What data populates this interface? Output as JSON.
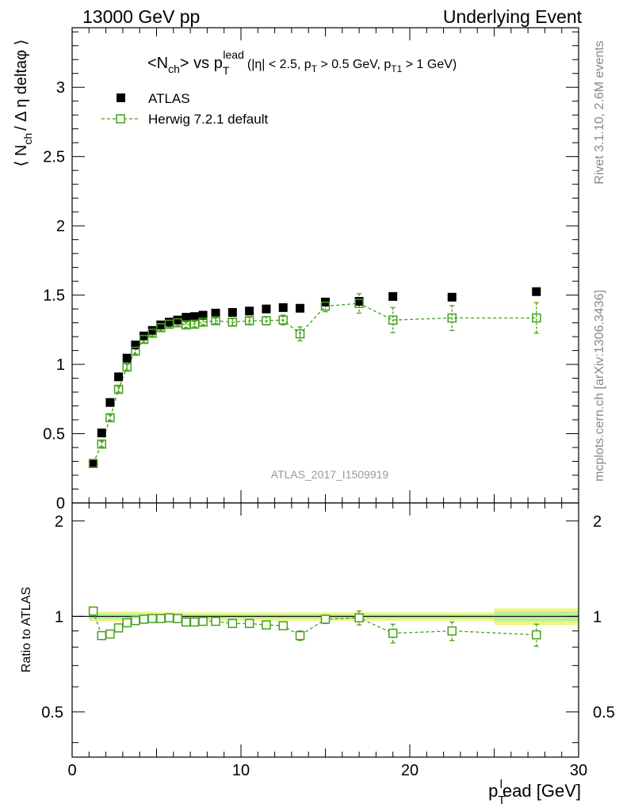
{
  "header": {
    "left": "13000 GeV pp",
    "right": "Underlying Event"
  },
  "side_text": {
    "rivet": "Rivet 3.1.10,  2.6M events",
    "mcplots": "mcplots.cern.ch [arXiv:1306.3436]"
  },
  "title": {
    "main_pre": "<N",
    "main_ch": "ch",
    "main_mid": "> vs p",
    "main_T": "T",
    "main_lead": "lead",
    "cuts_a": "(|η| < 2.5, p",
    "cuts_b": "T",
    "cuts_c": " > 0.5 GeV, p",
    "cuts_d": "T1",
    "cuts_e": " > 1 GeV)"
  },
  "analysis_tag": "ATLAS_2017_I1509919",
  "colors": {
    "data": "#000000",
    "mc": "#44a01a",
    "band_outer": "#f2f57d",
    "band_inner": "#b6f0a0"
  },
  "chart_data": [
    {
      "type": "scatter",
      "panel": "main",
      "ylabel_parts": [
        "⟨ N",
        "ch",
        "/ Δ η deltaφ ⟩"
      ],
      "xlim": [
        0,
        30
      ],
      "ylim": [
        0,
        3.43
      ],
      "yticks": [
        {
          "v": 0,
          "t": "0"
        },
        {
          "v": 0.5,
          "t": "0.5"
        },
        {
          "v": 1,
          "t": "1"
        },
        {
          "v": 1.5,
          "t": "1.5"
        },
        {
          "v": 2,
          "t": "2"
        },
        {
          "v": 2.5,
          "t": "2.5"
        },
        {
          "v": 3,
          "t": "3"
        }
      ],
      "legend_position": "top-left",
      "series": [
        {
          "name": "ATLAS",
          "marker": "filled-square",
          "points": [
            {
              "x": 1.25,
              "y": 0.285
            },
            {
              "x": 1.75,
              "y": 0.505
            },
            {
              "x": 2.25,
              "y": 0.725
            },
            {
              "x": 2.75,
              "y": 0.91
            },
            {
              "x": 3.25,
              "y": 1.045
            },
            {
              "x": 3.75,
              "y": 1.14
            },
            {
              "x": 4.25,
              "y": 1.205
            },
            {
              "x": 4.75,
              "y": 1.245
            },
            {
              "x": 5.25,
              "y": 1.285
            },
            {
              "x": 5.75,
              "y": 1.305
            },
            {
              "x": 6.25,
              "y": 1.32
            },
            {
              "x": 6.75,
              "y": 1.34
            },
            {
              "x": 7.25,
              "y": 1.345
            },
            {
              "x": 7.75,
              "y": 1.355
            },
            {
              "x": 8.5,
              "y": 1.37
            },
            {
              "x": 9.5,
              "y": 1.375
            },
            {
              "x": 10.5,
              "y": 1.385
            },
            {
              "x": 11.5,
              "y": 1.4
            },
            {
              "x": 12.5,
              "y": 1.41
            },
            {
              "x": 13.5,
              "y": 1.405
            },
            {
              "x": 15.0,
              "y": 1.45
            },
            {
              "x": 17.0,
              "y": 1.455
            },
            {
              "x": 19.0,
              "y": 1.49
            },
            {
              "x": 22.5,
              "y": 1.485
            },
            {
              "x": 27.5,
              "y": 1.525
            }
          ]
        },
        {
          "name": "Herwig 7.2.1 default",
          "marker": "open-square",
          "line": "dashed",
          "points": [
            {
              "x": 1.25,
              "y": 0.285,
              "err": 0.02
            },
            {
              "x": 1.75,
              "y": 0.425,
              "err": 0.02
            },
            {
              "x": 2.25,
              "y": 0.615,
              "err": 0.02
            },
            {
              "x": 2.75,
              "y": 0.82,
              "err": 0.02
            },
            {
              "x": 3.25,
              "y": 0.98,
              "err": 0.02
            },
            {
              "x": 3.75,
              "y": 1.095,
              "err": 0.02
            },
            {
              "x": 4.25,
              "y": 1.18,
              "err": 0.02
            },
            {
              "x": 4.75,
              "y": 1.225,
              "err": 0.02
            },
            {
              "x": 5.25,
              "y": 1.265,
              "err": 0.02
            },
            {
              "x": 5.75,
              "y": 1.29,
              "err": 0.02
            },
            {
              "x": 6.25,
              "y": 1.3,
              "err": 0.02
            },
            {
              "x": 6.75,
              "y": 1.285,
              "err": 0.02
            },
            {
              "x": 7.25,
              "y": 1.29,
              "err": 0.02
            },
            {
              "x": 7.75,
              "y": 1.305,
              "err": 0.02
            },
            {
              "x": 8.5,
              "y": 1.315,
              "err": 0.02
            },
            {
              "x": 9.5,
              "y": 1.305,
              "err": 0.025
            },
            {
              "x": 10.5,
              "y": 1.315,
              "err": 0.025
            },
            {
              "x": 11.5,
              "y": 1.315,
              "err": 0.03
            },
            {
              "x": 12.5,
              "y": 1.32,
              "err": 0.035
            },
            {
              "x": 13.5,
              "y": 1.22,
              "err": 0.05
            },
            {
              "x": 15.0,
              "y": 1.42,
              "err": 0.04
            },
            {
              "x": 17.0,
              "y": 1.44,
              "err": 0.07
            },
            {
              "x": 19.0,
              "y": 1.32,
              "err": 0.09
            },
            {
              "x": 22.5,
              "y": 1.335,
              "err": 0.09
            },
            {
              "x": 27.5,
              "y": 1.335,
              "err": 0.11
            }
          ]
        }
      ]
    },
    {
      "type": "scatter",
      "panel": "ratio",
      "ylabel": "Ratio to ATLAS",
      "xlabel_parts": [
        "p",
        "T",
        "l",
        "ead [GeV]"
      ],
      "xlim": [
        0,
        30
      ],
      "ylim": [
        0.36,
        2.28
      ],
      "log_y": true,
      "xticks": [
        {
          "v": 0,
          "t": "0"
        },
        {
          "v": 10,
          "t": "10"
        },
        {
          "v": 20,
          "t": "20"
        },
        {
          "v": 30,
          "t": "30"
        }
      ],
      "yticks": [
        {
          "v": 0.5,
          "t": "0.5"
        },
        {
          "v": 1,
          "t": "1"
        },
        {
          "v": 2,
          "t": "2"
        }
      ],
      "reference": 1,
      "band": [
        {
          "x0": 1.0,
          "x1": 5.0,
          "outer": 0.035,
          "inner": 0.02
        },
        {
          "x0": 5.0,
          "x1": 25.0,
          "outer": 0.03,
          "inner": 0.015
        },
        {
          "x0": 25.0,
          "x1": 30.0,
          "outer": 0.06,
          "inner": 0.035
        }
      ],
      "series": [
        {
          "name": "Herwig 7.2.1 default",
          "marker": "open-square",
          "line": "dashed",
          "points": [
            {
              "x": 1.25,
              "y": 1.04,
              "err": 0.03
            },
            {
              "x": 1.75,
              "y": 0.87,
              "err": 0.02
            },
            {
              "x": 2.25,
              "y": 0.88,
              "err": 0.02
            },
            {
              "x": 2.75,
              "y": 0.92,
              "err": 0.02
            },
            {
              "x": 3.25,
              "y": 0.955,
              "err": 0.015
            },
            {
              "x": 3.75,
              "y": 0.97,
              "err": 0.015
            },
            {
              "x": 4.25,
              "y": 0.98,
              "err": 0.015
            },
            {
              "x": 4.75,
              "y": 0.985,
              "err": 0.015
            },
            {
              "x": 5.25,
              "y": 0.985,
              "err": 0.015
            },
            {
              "x": 5.75,
              "y": 0.99,
              "err": 0.015
            },
            {
              "x": 6.25,
              "y": 0.985,
              "err": 0.015
            },
            {
              "x": 6.75,
              "y": 0.96,
              "err": 0.015
            },
            {
              "x": 7.25,
              "y": 0.96,
              "err": 0.015
            },
            {
              "x": 7.75,
              "y": 0.965,
              "err": 0.015
            },
            {
              "x": 8.5,
              "y": 0.965,
              "err": 0.015
            },
            {
              "x": 9.5,
              "y": 0.95,
              "err": 0.018
            },
            {
              "x": 10.5,
              "y": 0.95,
              "err": 0.018
            },
            {
              "x": 11.5,
              "y": 0.94,
              "err": 0.02
            },
            {
              "x": 12.5,
              "y": 0.935,
              "err": 0.025
            },
            {
              "x": 13.5,
              "y": 0.87,
              "err": 0.03
            },
            {
              "x": 15.0,
              "y": 0.98,
              "err": 0.03
            },
            {
              "x": 17.0,
              "y": 0.99,
              "err": 0.05
            },
            {
              "x": 19.0,
              "y": 0.885,
              "err": 0.06
            },
            {
              "x": 22.5,
              "y": 0.9,
              "err": 0.06
            },
            {
              "x": 27.5,
              "y": 0.875,
              "err": 0.07
            }
          ]
        }
      ]
    }
  ]
}
